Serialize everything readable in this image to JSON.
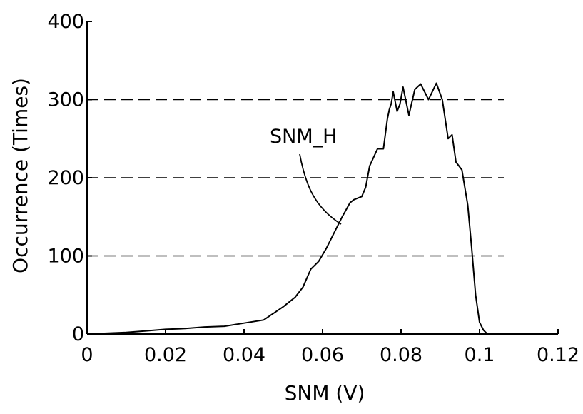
{
  "chart_data": {
    "type": "line",
    "title": "",
    "xlabel": "SNM (V)",
    "ylabel": "Occurrence (Times)",
    "xlim": [
      0,
      0.12
    ],
    "ylim": [
      0,
      400
    ],
    "x_ticks": [
      "0",
      "0.02",
      "0.04",
      "0.06",
      "0.08",
      "0.1",
      "0.12"
    ],
    "y_ticks": [
      "0",
      "100",
      "200",
      "300",
      "400"
    ],
    "grid": "dashed horizontal lines at 100, 200, 300",
    "series": [
      {
        "name": "SNM_H",
        "x": [
          0,
          0.005,
          0.01,
          0.015,
          0.02,
          0.025,
          0.03,
          0.035,
          0.04,
          0.045,
          0.05,
          0.053,
          0.055,
          0.057,
          0.059,
          0.061,
          0.063,
          0.065,
          0.067,
          0.068,
          0.07,
          0.071,
          0.072,
          0.074,
          0.0755,
          0.0765,
          0.077,
          0.0775,
          0.078,
          0.079,
          0.0797,
          0.0805,
          0.082,
          0.0835,
          0.085,
          0.087,
          0.089,
          0.0905,
          0.092,
          0.093,
          0.094,
          0.0955,
          0.097,
          0.098,
          0.099,
          0.1,
          0.101,
          0.102
        ],
        "y": [
          0,
          1,
          2,
          4,
          6,
          7,
          9,
          10,
          14,
          18,
          35,
          47,
          60,
          83,
          93,
          110,
          130,
          150,
          168,
          172,
          176,
          188,
          215,
          237,
          237,
          275,
          287,
          295,
          310,
          285,
          294,
          316,
          280,
          313,
          320,
          300,
          321,
          300,
          250,
          255,
          220,
          210,
          165,
          110,
          50,
          15,
          5,
          0
        ]
      }
    ],
    "annotations": [
      {
        "text": "SNM_H",
        "points_to_series": "SNM_H"
      }
    ]
  }
}
